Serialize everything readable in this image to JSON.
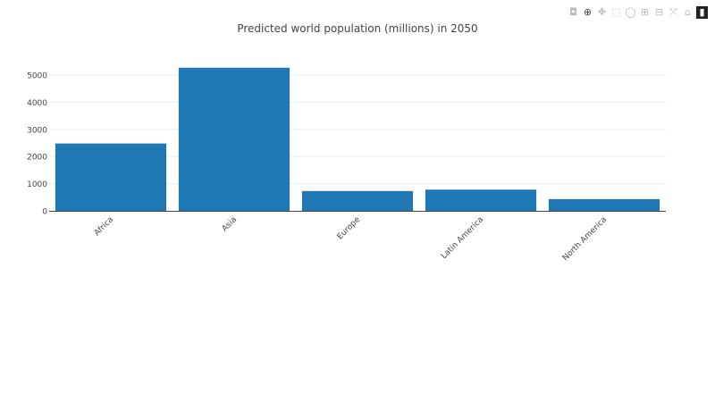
{
  "chart_data": {
    "type": "bar",
    "title": "Predicted world population (millions) in 2050",
    "categories": [
      "Africa",
      "Asia",
      "Europe",
      "Latin America",
      "North America"
    ],
    "values": [
      2480,
      5270,
      730,
      780,
      430
    ],
    "xlabel": "",
    "ylabel": "",
    "ylim": [
      0,
      5300
    ],
    "yticks": [
      0,
      1000,
      2000,
      3000,
      4000,
      5000
    ],
    "grid": true,
    "bar_color": "#1f77b4"
  },
  "modebar": {
    "icons": [
      "camera-icon",
      "zoom-icon",
      "pan-icon",
      "box-select-icon",
      "lasso-icon",
      "zoom-in-icon",
      "zoom-out-icon",
      "autoscale-icon",
      "home-icon",
      "plotly-logo-icon"
    ],
    "glyphs": [
      "◘",
      "⊕",
      "✥",
      "⬚",
      "◯",
      "⊞",
      "⊟",
      "⤧",
      "⌂",
      "▮"
    ]
  }
}
